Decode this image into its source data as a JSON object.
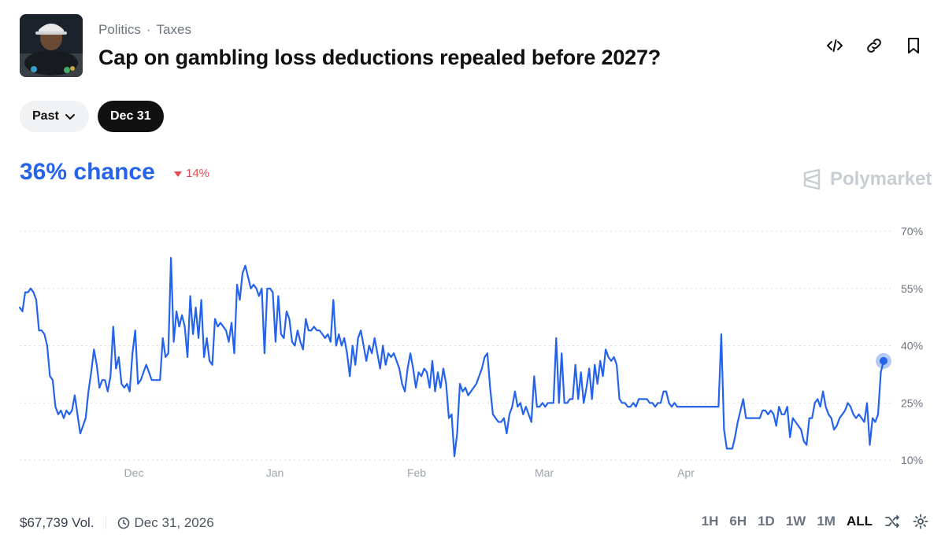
{
  "header": {
    "category": "Politics",
    "subcategory": "Taxes",
    "title": "Cap on gambling loss deductions repealed before 2027?"
  },
  "icons": {
    "embed": "code-icon",
    "link": "link-icon",
    "bookmark": "bookmark-icon"
  },
  "filters": {
    "past_label": "Past",
    "date_label": "Dec 31"
  },
  "summary": {
    "chance_text": "36% chance",
    "change_text": "14%",
    "change_color": "#e5484d"
  },
  "brand": {
    "name": "Polymarket"
  },
  "chart_data": {
    "type": "line",
    "x_tick_labels": [
      "Dec",
      "Jan",
      "Feb",
      "Mar",
      "Apr"
    ],
    "y_tick_labels": [
      "70%",
      "55%",
      "40%",
      "25%",
      "10%"
    ],
    "ylim": [
      10,
      70
    ],
    "grid": true,
    "line_color": "#2563eb",
    "series": [
      {
        "values": [
          50,
          49,
          54,
          54,
          55,
          54,
          52,
          44,
          44,
          43,
          40,
          32,
          31,
          24,
          22,
          23,
          21,
          23,
          22,
          23,
          27,
          22,
          17,
          19,
          21,
          28,
          33,
          39,
          35,
          29,
          31,
          31,
          28,
          32,
          45,
          34,
          37,
          30,
          29,
          30,
          28,
          38,
          44,
          30,
          31,
          33,
          35,
          33,
          31,
          31,
          31,
          31,
          42,
          37,
          38,
          63,
          41,
          49,
          45,
          48,
          45,
          37,
          53,
          43,
          50,
          42,
          52,
          37,
          42,
          36,
          35,
          47,
          45,
          46,
          45,
          44,
          41,
          46,
          38,
          56,
          52,
          59,
          61,
          58,
          55,
          56,
          55,
          53,
          55,
          38,
          55,
          55,
          54,
          41,
          53,
          43,
          42,
          49,
          47,
          41,
          40,
          44,
          41,
          39,
          47,
          44,
          44,
          45,
          44,
          44,
          43,
          42,
          43,
          41,
          52,
          40,
          43,
          40,
          42,
          38,
          32,
          40,
          35,
          42,
          44,
          40,
          36,
          40,
          38,
          42,
          38,
          34,
          40,
          35,
          38,
          37,
          38,
          36,
          34,
          30,
          28,
          34,
          38,
          34,
          29,
          33,
          32,
          34,
          33,
          29,
          36,
          28,
          33,
          29,
          34,
          30,
          21,
          22,
          11,
          17,
          30,
          28,
          29,
          27,
          28,
          29,
          30,
          32,
          34,
          37,
          38,
          29,
          22,
          21,
          20,
          20,
          21,
          17,
          22,
          24,
          28,
          24,
          25,
          22,
          24,
          22,
          20,
          32,
          24,
          24,
          25,
          24,
          25,
          25,
          25,
          42,
          25,
          38,
          25,
          25,
          26,
          26,
          35,
          26,
          33,
          25,
          29,
          34,
          26,
          35,
          30,
          36,
          32,
          39,
          37,
          36,
          37,
          35,
          26,
          25,
          25,
          24,
          24,
          25,
          24,
          26,
          26,
          26,
          26,
          25,
          25,
          24,
          25,
          25,
          28,
          28,
          25,
          24,
          25,
          24,
          24,
          24,
          24,
          24,
          24,
          24,
          24,
          24,
          24,
          24,
          24,
          24,
          24,
          24,
          24,
          43,
          18,
          13,
          13,
          13,
          16,
          20,
          23,
          26,
          21,
          21,
          21,
          21,
          21,
          21,
          23,
          23,
          22,
          23,
          22,
          19,
          24,
          22,
          22,
          24,
          16,
          21,
          20,
          19,
          18,
          15,
          14,
          21,
          21,
          25,
          26,
          24,
          28,
          24,
          22,
          21,
          18,
          19,
          21,
          22,
          23,
          25,
          24,
          22,
          21,
          22,
          21,
          20,
          25,
          14,
          21,
          20,
          22,
          33,
          36
        ]
      }
    ]
  },
  "footer": {
    "volume": "$67,739 Vol.",
    "end_date": "Dec 31, 2026",
    "ranges": [
      "1H",
      "6H",
      "1D",
      "1W",
      "1M",
      "ALL"
    ],
    "active_range": "ALL"
  }
}
